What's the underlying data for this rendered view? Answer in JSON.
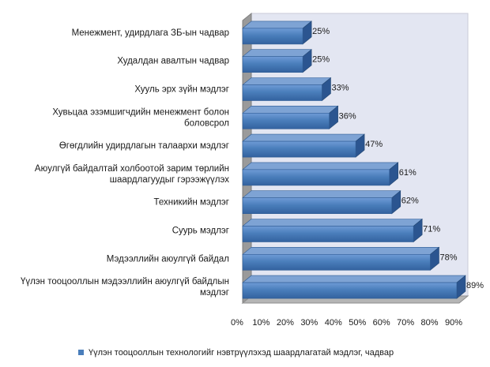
{
  "chart_data": {
    "type": "bar",
    "orientation": "horizontal",
    "categories": [
      "Менежмент, удирдлага ЗБ-ын чадвар",
      "Худалдан авалтын чадвар",
      "Хууль эрх зүйн мэдлэг",
      "Хувьцаа эзэмшигчдийн менежмент болон боловсрол",
      "Өгөгдлийн удирдлагын талаархи мэдлэг",
      "Аюулгүй байдалтай холбоотой зарим төрлийн шаардлагуудыг  гэрээжүүлэх",
      "Техникийн мэдлэг",
      "Суурь мэдлэг",
      "Мэдээллийн аюулгүй байдал",
      "Үүлэн тооцооллын мэдээллийн аюулгүй байдлын мэдлэг"
    ],
    "category_lines": [
      [
        "Менежмент, удирдлага ЗБ-ын чадвар"
      ],
      [
        "Худалдан авалтын чадвар"
      ],
      [
        "Хууль эрх зүйн мэдлэг"
      ],
      [
        "Хувьцаа эзэмшигчдийн менежмент болон",
        "боловсрол"
      ],
      [
        "Өгөгдлийн удирдлагын талаархи мэдлэг"
      ],
      [
        "Аюулгүй байдалтай холбоотой зарим төрлийн",
        "шаардлагуудыг  гэрээжүүлэх"
      ],
      [
        "Техникийн мэдлэг"
      ],
      [
        "Суурь мэдлэг"
      ],
      [
        "Мэдээллийн аюулгүй байдал"
      ],
      [
        "Үүлэн тооцооллын мэдээллийн аюулгүй байдлын",
        "мэдлэг"
      ]
    ],
    "series": [
      {
        "name": "Үүлэн тооцооллын технологийг нэвтрүүлэхэд шаардлагатай мэдлэг, чадвар",
        "values": [
          25,
          25,
          33,
          36,
          47,
          61,
          62,
          71,
          78,
          89
        ],
        "labels": [
          "25%",
          "25%",
          "33%",
          "36%",
          "47%",
          "61%",
          "62%",
          "71%",
          "78%",
          "89%"
        ]
      }
    ],
    "xlim": [
      0,
      90
    ],
    "ticks": [
      0,
      10,
      20,
      30,
      40,
      50,
      60,
      70,
      80,
      90
    ],
    "tick_labels": [
      "0%",
      "10%",
      "20%",
      "30%",
      "40%",
      "50%",
      "60%",
      "70%",
      "80%",
      "90%"
    ],
    "grid": false,
    "legend_position": "bottom",
    "bar_color": "#4a7ebb",
    "bar_color_dark": "#2b5590",
    "bar_color_top": "#7ea3d4",
    "wall_color": "#e3e6f2"
  }
}
